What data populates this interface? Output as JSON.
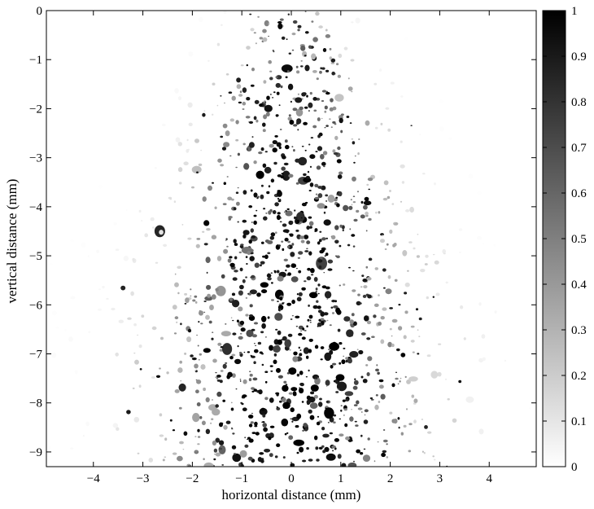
{
  "chart_data": [
    {
      "type": "heatmap",
      "title": "",
      "xlabel": "horizontal distance (mm)",
      "ylabel": "vertical distance (mm)",
      "xlim": [
        -4.95,
        4.95
      ],
      "ylim": [
        -9.3,
        0
      ],
      "x_ticks": [
        -4,
        -3,
        -2,
        -1,
        0,
        1,
        2,
        3,
        4
      ],
      "y_ticks": [
        0,
        -1,
        -2,
        -3,
        -4,
        -5,
        -6,
        -7,
        -8,
        -9
      ],
      "grid": false,
      "colormap": "grayscale",
      "colormap_low_color": "#ffffff",
      "colormap_high_color": "#000000",
      "colorbar": {
        "range": [
          0,
          1
        ],
        "ticks": [
          0,
          0.1,
          0.2,
          0.3,
          0.4,
          0.5,
          0.6,
          0.7,
          0.8,
          0.9,
          1
        ],
        "position": "right"
      },
      "description_of_field": [
        {
          "x_center": 0.0,
          "y_center": -5.0,
          "x_halfwidth": 1.9,
          "intensity": "high"
        },
        {
          "x_center": 0.0,
          "y_center": -1.0,
          "x_halfwidth": 1.0,
          "intensity": "medium"
        },
        {
          "x_center": 0.0,
          "y_center": -8.5,
          "x_halfwidth": 2.6,
          "intensity": "high"
        }
      ]
    }
  ]
}
